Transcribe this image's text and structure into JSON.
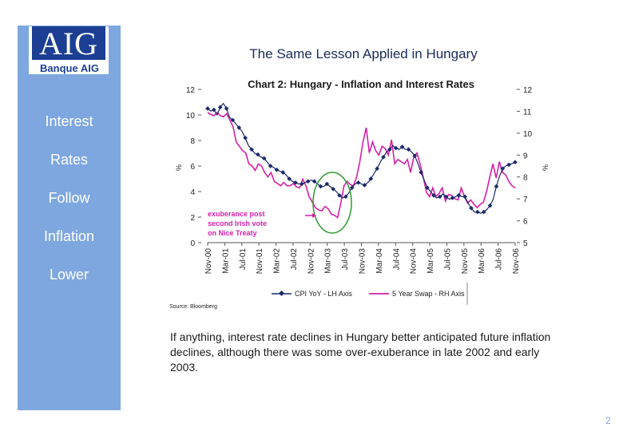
{
  "logo": {
    "mark": "AIG",
    "sub": "Banque AIG"
  },
  "sidebar_words": [
    "Interest",
    "Rates",
    "Follow",
    "Inflation",
    "Lower"
  ],
  "main_title": "The Same Lesson Applied in Hungary",
  "source": "Source: Bloomberg",
  "paragraph": "If anything, interest rate declines in Hungary better anticipated future inflation declines, although there was some over-exuberance in late 2002 and early 2003.",
  "page_number": "2",
  "chart_data": {
    "type": "line",
    "title": "Chart 2: Hungary - Inflation and Interest Rates",
    "left_axis_unit": "%",
    "right_axis_unit": "%",
    "left_ylim": [
      0,
      12
    ],
    "right_ylim": [
      5,
      12
    ],
    "left_ticks": [
      "0",
      "2",
      "4",
      "6",
      "8",
      "10",
      "12"
    ],
    "right_ticks": [
      "5",
      "6",
      "7",
      "8",
      "9",
      "10",
      "11",
      "12"
    ],
    "x_labels": [
      "Nov-00",
      "Mar-01",
      "Jul-01",
      "Nov-01",
      "Mar-02",
      "Jul-02",
      "Nov-02",
      "Mar-03",
      "Jul-03",
      "Nov-03",
      "Mar-04",
      "Jul-04",
      "Nov-04",
      "Mar-05",
      "Jul-05",
      "Nov-05",
      "Mar-06",
      "Jul-06",
      "Nov-06"
    ],
    "annotation": [
      "exuberance post",
      "second Irish vote",
      "on Nice Treaty"
    ],
    "series": [
      {
        "name": "CPI YoY - LH Axis",
        "axis": "left",
        "color": "#1c2a6b",
        "marker": "diamond",
        "values": [
          10.5,
          10.3,
          10.4,
          10.0,
          10.6,
          10.9,
          10.5,
          9.8,
          9.6,
          9.3,
          9.0,
          8.7,
          8.2,
          7.6,
          7.3,
          7.0,
          6.9,
          6.7,
          6.6,
          6.3,
          6.0,
          5.9,
          5.7,
          5.6,
          5.5,
          5.3,
          5.0,
          4.8,
          4.7,
          4.6,
          4.6,
          4.7,
          4.8,
          4.9,
          4.8,
          4.6,
          4.4,
          4.4,
          4.6,
          4.4,
          4.2,
          4.0,
          3.7,
          3.5,
          3.6,
          3.9,
          4.3,
          4.6,
          4.7,
          4.6,
          4.5,
          4.7,
          5.0,
          5.4,
          5.8,
          6.3,
          6.7,
          7.1,
          7.3,
          7.6,
          7.4,
          7.3,
          7.5,
          7.3,
          7.3,
          7.1,
          6.8,
          6.2,
          5.5,
          4.9,
          4.3,
          4.0,
          3.7,
          3.5,
          3.6,
          3.8,
          3.6,
          3.4,
          3.5,
          3.6,
          3.7,
          3.6,
          3.6,
          3.1,
          2.7,
          2.4,
          2.4,
          2.3,
          2.4,
          2.6,
          2.9,
          3.4,
          4.4,
          5.2,
          5.8,
          6.0,
          6.1,
          6.2,
          6.3
        ]
      },
      {
        "name": "5 Year Swap - RH Axis",
        "axis": "right",
        "color": "#d61fa8",
        "marker": "none",
        "values": [
          10.95,
          10.85,
          10.8,
          10.95,
          10.8,
          10.75,
          10.9,
          10.6,
          10.3,
          9.6,
          9.4,
          9.2,
          9.1,
          8.6,
          8.5,
          8.3,
          8.6,
          8.5,
          8.2,
          8.0,
          8.2,
          7.8,
          7.7,
          7.6,
          7.75,
          7.6,
          7.6,
          7.7,
          7.55,
          7.5,
          7.9,
          7.6,
          7.1,
          6.85,
          6.6,
          6.5,
          6.45,
          6.65,
          6.55,
          6.3,
          6.25,
          6.15,
          6.8,
          7.6,
          7.8,
          7.65,
          7.6,
          8.0,
          8.7,
          9.6,
          10.25,
          9.1,
          9.6,
          9.2,
          9.0,
          9.4,
          9.3,
          9.0,
          9.7,
          8.6,
          8.8,
          8.7,
          8.6,
          8.8,
          8.2,
          8.9,
          9.1,
          8.6,
          8.0,
          7.3,
          7.1,
          7.5,
          7.1,
          7.25,
          7.5,
          6.9,
          7.2,
          7.15,
          7.0,
          6.95,
          7.5,
          7.1,
          6.8,
          6.95,
          6.75,
          6.6,
          6.75,
          6.85,
          7.35,
          8.0,
          8.6,
          7.95,
          8.7,
          8.2,
          8.1,
          7.8,
          7.6,
          7.5
        ]
      }
    ]
  }
}
